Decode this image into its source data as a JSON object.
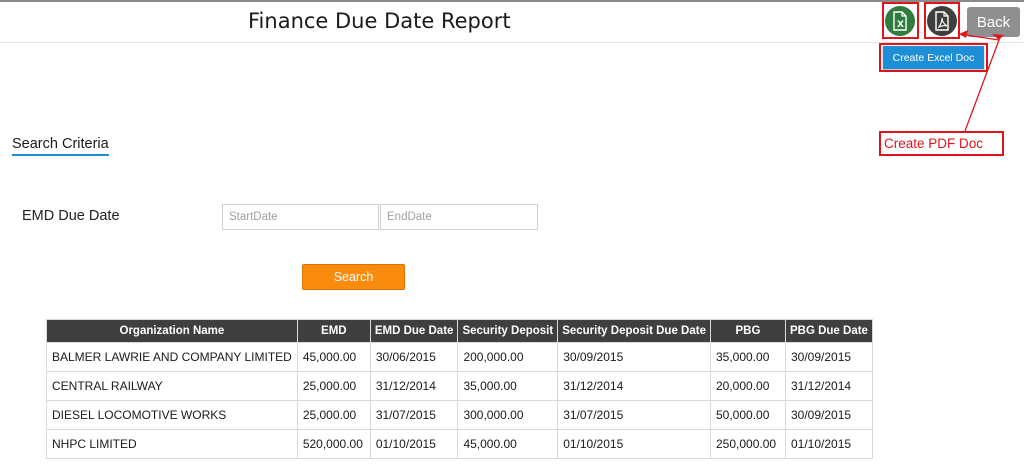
{
  "header": {
    "title": "Finance Due Date Report",
    "back_label": "Back",
    "excel_icon": "excel-doc-icon",
    "pdf_icon": "pdf-doc-icon"
  },
  "annotations": {
    "excel_tooltip": "Create Excel Doc",
    "pdf_callout": "Create PDF Doc",
    "accent_color": "#e0141d"
  },
  "search": {
    "heading": "Search Criteria",
    "emd_label": "EMD Due Date",
    "start_placeholder": "StartDate",
    "end_placeholder": "EndDate",
    "button_label": "Search"
  },
  "table": {
    "columns": [
      "Organization Name",
      "EMD",
      "EMD Due Date",
      "Security Deposit",
      "Security Deposit Due Date",
      "PBG",
      "PBG Due Date"
    ],
    "rows": [
      [
        "BALMER LAWRIE AND COMPANY LIMITED",
        "45,000.00",
        "30/06/2015",
        "200,000.00",
        "30/09/2015",
        "35,000.00",
        "30/09/2015"
      ],
      [
        "CENTRAL RAILWAY",
        "25,000.00",
        "31/12/2014",
        "35,000.00",
        "31/12/2014",
        "20,000.00",
        "31/12/2014"
      ],
      [
        "DIESEL LOCOMOTIVE WORKS",
        "25,000.00",
        "31/07/2015",
        "300,000.00",
        "31/07/2015",
        "50,000.00",
        "30/09/2015"
      ],
      [
        "NHPC LIMITED",
        "520,000.00",
        "01/10/2015",
        "45,000.00",
        "01/10/2015",
        "250,000.00",
        "01/10/2015"
      ]
    ]
  },
  "colors": {
    "excel": "#2e7d3e",
    "pdf": "#3f3f3f",
    "back": "#8f8f8f",
    "search_button": "#f98c0e",
    "table_header": "#3f3f3f",
    "tooltip": "#1e8fd6"
  }
}
